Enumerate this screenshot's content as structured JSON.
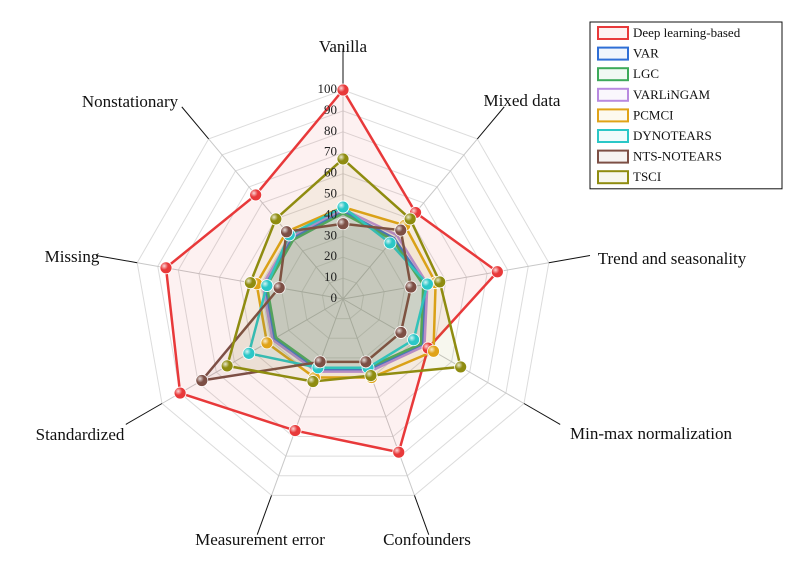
{
  "chart_data": {
    "type": "radar",
    "categories": [
      "Vanilla",
      "Mixed data",
      "Trend and seasonality",
      "Min-max normalization",
      "Confounders",
      "Measurement error",
      "Standardized",
      "Missing",
      "Nonstationary"
    ],
    "rlim": [
      0,
      100
    ],
    "rticks": [
      0,
      10,
      20,
      30,
      40,
      50,
      60,
      70,
      80,
      90,
      100
    ],
    "grid": true,
    "legend": "top-right",
    "series": [
      {
        "name": "Deep learning-based",
        "color": "#e8393a",
        "markers": true,
        "values": [
          100,
          54,
          75,
          47,
          78,
          67,
          90,
          86,
          65
        ]
      },
      {
        "name": "VAR",
        "color": "#2f6fd6",
        "markers": false,
        "values": [
          42,
          38,
          40,
          44,
          36,
          36,
          38,
          38,
          38
        ]
      },
      {
        "name": "LGC",
        "color": "#3daa5a",
        "markers": false,
        "values": [
          41,
          37,
          39,
          43,
          35,
          35,
          37,
          37,
          37
        ]
      },
      {
        "name": "VARLiNGAM",
        "color": "#b98ae0",
        "markers": false,
        "values": [
          43,
          40,
          41,
          45,
          37,
          37,
          39,
          39,
          39
        ]
      },
      {
        "name": "PCMCI",
        "color": "#e0a318",
        "markers": true,
        "values": [
          44,
          46,
          45,
          50,
          40,
          40,
          42,
          42,
          42
        ]
      },
      {
        "name": "DYNOTEARS",
        "color": "#2bc7c7",
        "markers": true,
        "values": [
          44,
          35,
          41,
          39,
          35,
          35,
          52,
          37,
          40
        ]
      },
      {
        "name": "NTS-NOTEARS",
        "color": "#7d4f45",
        "markers": true,
        "values": [
          36,
          43,
          33,
          32,
          32,
          32,
          78,
          31,
          42
        ]
      },
      {
        "name": "TSCI",
        "color": "#8f8c10",
        "markers": true,
        "values": [
          67,
          50,
          47,
          65,
          39,
          42,
          64,
          45,
          50
        ]
      }
    ]
  }
}
